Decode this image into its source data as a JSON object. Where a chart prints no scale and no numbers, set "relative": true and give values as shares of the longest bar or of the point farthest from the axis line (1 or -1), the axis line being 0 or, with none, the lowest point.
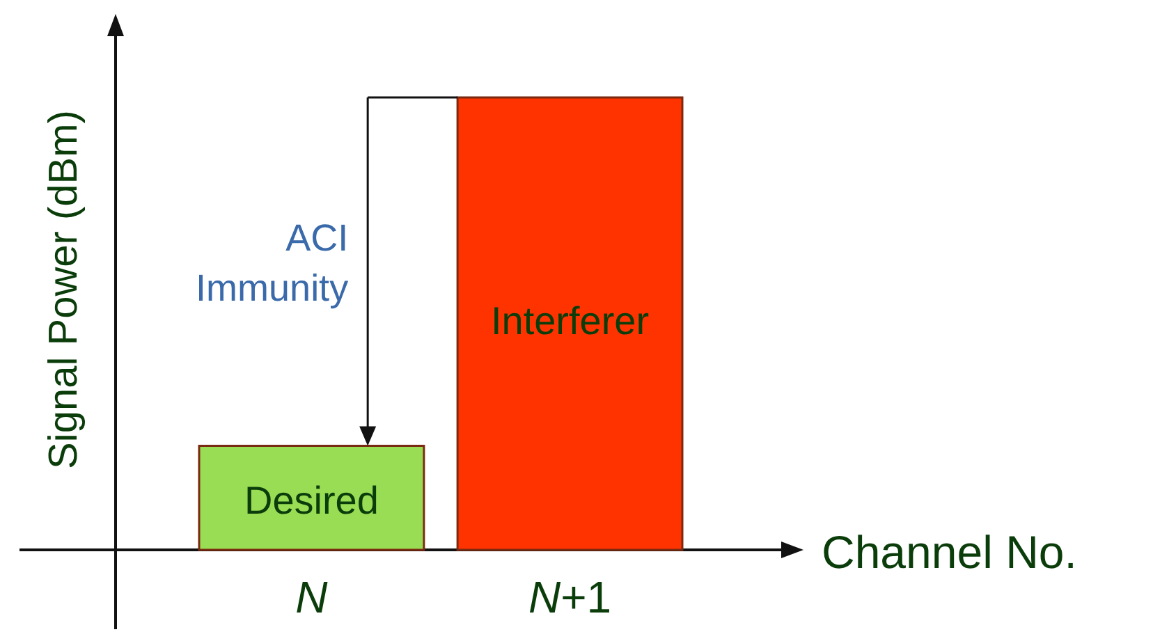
{
  "chart_data": {
    "type": "bar",
    "relative": true,
    "categories": [
      "N",
      "N+1"
    ],
    "values": [
      0.23,
      1
    ],
    "colors": [
      "#99dd55",
      "#ff3300"
    ],
    "xlabel": "Channel No.",
    "ylabel": "Signal Power (dBm)",
    "annotations": [
      "Desired",
      "Interferer",
      "ACI Immunity"
    ],
    "ref_lines": [
      {
        "axis": "y",
        "value": 1
      }
    ]
  }
}
